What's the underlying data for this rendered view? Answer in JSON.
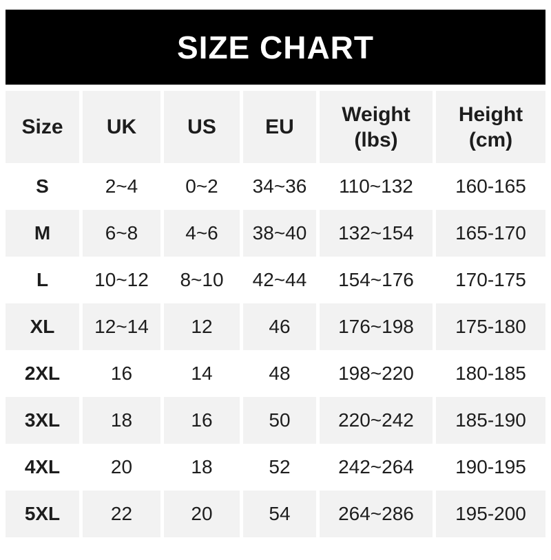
{
  "banner": {
    "title": "SIZE CHART",
    "bg_color": "#000000",
    "text_color": "#ffffff"
  },
  "colors": {
    "row_alt_bg": "#f2f2f2",
    "row_bg": "#ffffff",
    "text": "#1d1d1d"
  },
  "chart_data": {
    "type": "table",
    "title": "SIZE CHART",
    "columns": [
      "Size",
      "UK",
      "US",
      "EU",
      "Weight (lbs)",
      "Height (cm)"
    ],
    "header_lines": [
      [
        "Size",
        ""
      ],
      [
        "UK",
        ""
      ],
      [
        "US",
        ""
      ],
      [
        "EU",
        ""
      ],
      [
        "Weight",
        "(lbs)"
      ],
      [
        "Height",
        "(cm)"
      ]
    ],
    "rows": [
      [
        "S",
        "2~4",
        "0~2",
        "34~36",
        "110~132",
        "160-165"
      ],
      [
        "M",
        "6~8",
        "4~6",
        "38~40",
        "132~154",
        "165-170"
      ],
      [
        "L",
        "10~12",
        "8~10",
        "42~44",
        "154~176",
        "170-175"
      ],
      [
        "XL",
        "12~14",
        "12",
        "46",
        "176~198",
        "175-180"
      ],
      [
        "2XL",
        "16",
        "14",
        "48",
        "198~220",
        "180-185"
      ],
      [
        "3XL",
        "18",
        "16",
        "50",
        "220~242",
        "185-190"
      ],
      [
        "4XL",
        "20",
        "18",
        "52",
        "242~264",
        "190-195"
      ],
      [
        "5XL",
        "22",
        "20",
        "54",
        "264~286",
        "195-200"
      ]
    ]
  }
}
